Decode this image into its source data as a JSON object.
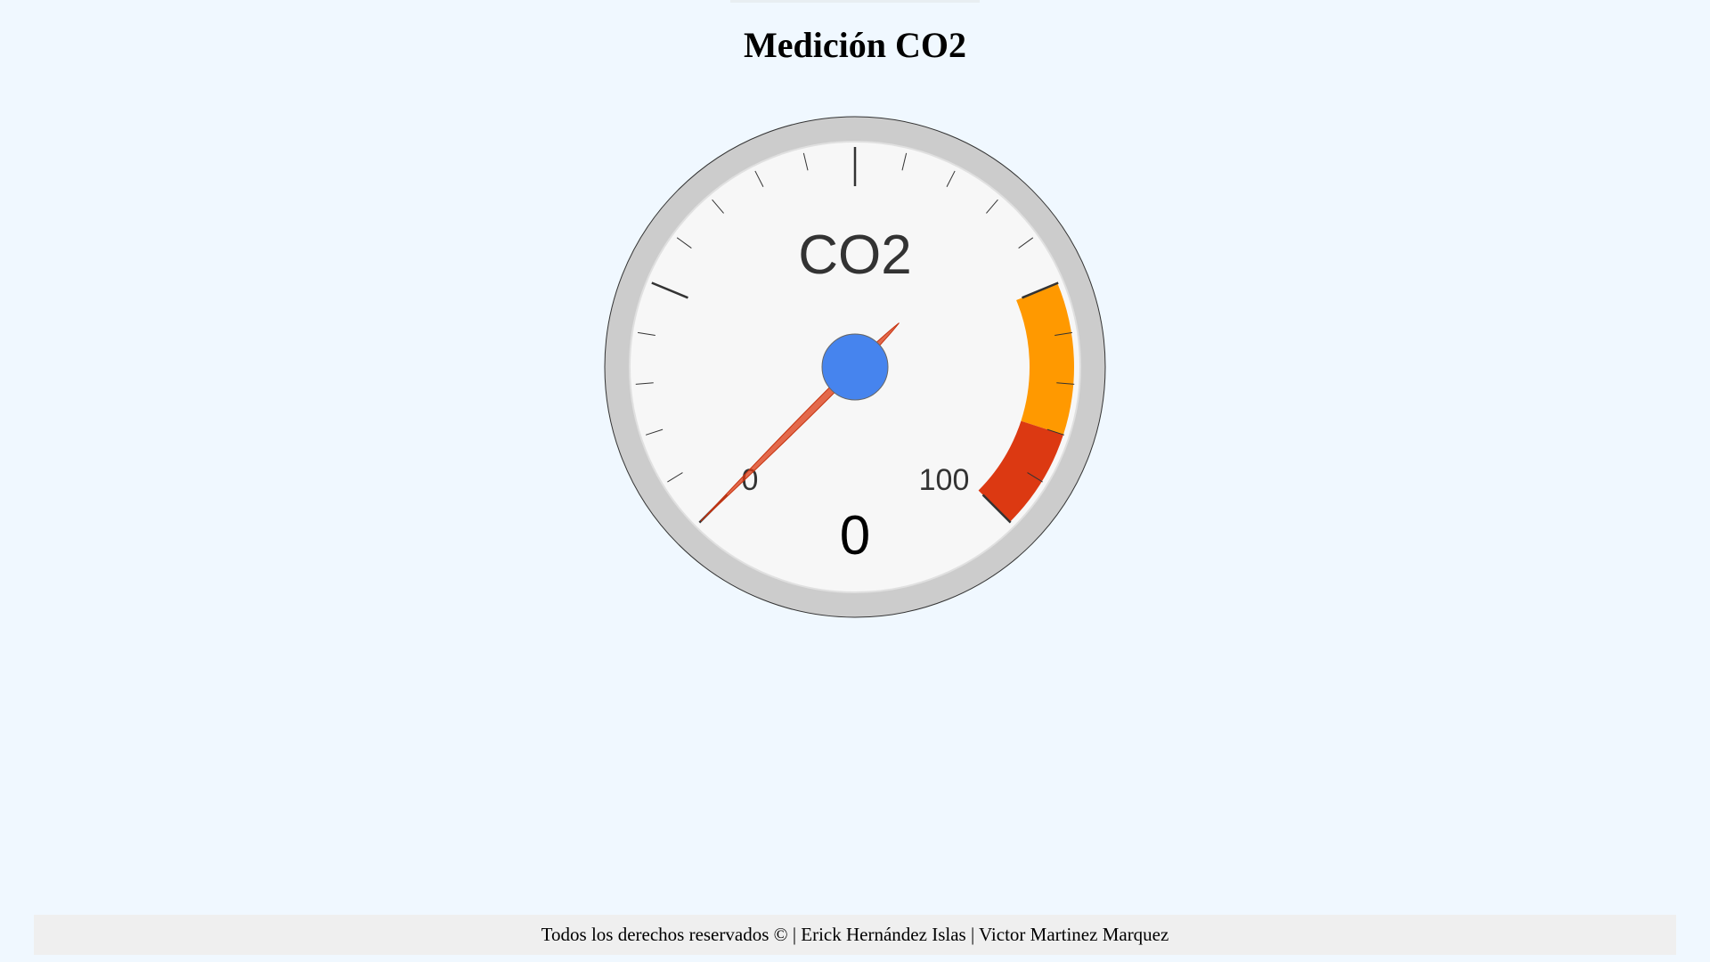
{
  "page": {
    "title": "Medición CO2",
    "background": "#f0f8ff"
  },
  "gauge": {
    "label": "CO2",
    "value": 0,
    "value_text": "0",
    "min": 0,
    "max": 100,
    "min_label": "0",
    "max_label": "100",
    "major_ticks": 5,
    "minor_ticks": 5,
    "bands": [
      {
        "from": 75,
        "to": 90,
        "color": "#ff9900"
      },
      {
        "from": 90,
        "to": 100,
        "color": "#dc3912"
      }
    ],
    "needle_color": "#dc3912",
    "hub_color": "#4684ee",
    "face_color": "#f7f7f7",
    "rim_color": "#cccccc"
  },
  "footer": {
    "text": "Todos los derechos reservados  ©  |  Erick Hernández Islas | Victor Martinez Marquez"
  }
}
